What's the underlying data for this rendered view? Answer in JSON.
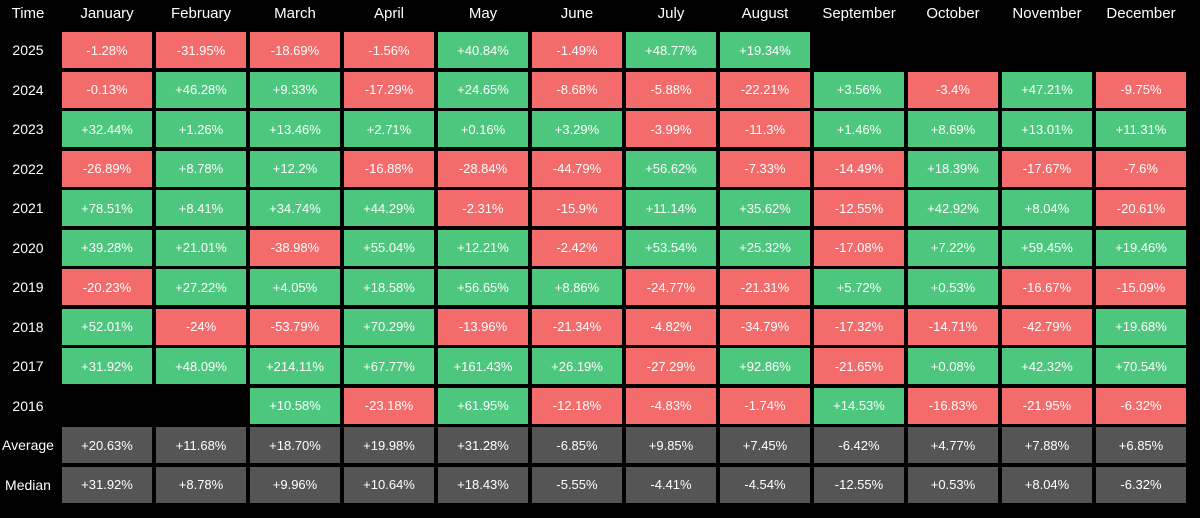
{
  "colors": {
    "positive": "#4cc77d",
    "negative": "#f36b6b",
    "summary": "#555555",
    "background": "#000000"
  },
  "header": {
    "time_label": "Time"
  },
  "chart_data": {
    "type": "heatmap",
    "title": "",
    "columns": [
      "January",
      "February",
      "March",
      "April",
      "May",
      "June",
      "July",
      "August",
      "September",
      "October",
      "November",
      "December"
    ],
    "rows": [
      {
        "label": "2025",
        "values": [
          "-1.28%",
          "-31.95%",
          "-18.69%",
          "-1.56%",
          "+40.84%",
          "-1.49%",
          "+48.77%",
          "+19.34%",
          null,
          null,
          null,
          null
        ]
      },
      {
        "label": "2024",
        "values": [
          "-0.13%",
          "+46.28%",
          "+9.33%",
          "-17.29%",
          "+24.65%",
          "-8.68%",
          "-5.88%",
          "-22.21%",
          "+3.56%",
          "-3.4%",
          "+47.21%",
          "-9.75%"
        ]
      },
      {
        "label": "2023",
        "values": [
          "+32.44%",
          "+1.26%",
          "+13.46%",
          "+2.71%",
          "+0.16%",
          "+3.29%",
          "-3.99%",
          "-11.3%",
          "+1.46%",
          "+8.69%",
          "+13.01%",
          "+11.31%"
        ]
      },
      {
        "label": "2022",
        "values": [
          "-26.89%",
          "+8.78%",
          "+12.2%",
          "-16.88%",
          "-28.84%",
          "-44.79%",
          "+56.62%",
          "-7.33%",
          "-14.49%",
          "+18.39%",
          "-17.67%",
          "-7.6%"
        ]
      },
      {
        "label": "2021",
        "values": [
          "+78.51%",
          "+8.41%",
          "+34.74%",
          "+44.29%",
          "-2.31%",
          "-15.9%",
          "+11.14%",
          "+35.62%",
          "-12.55%",
          "+42.92%",
          "+8.04%",
          "-20.61%"
        ]
      },
      {
        "label": "2020",
        "values": [
          "+39.28%",
          "+21.01%",
          "-38.98%",
          "+55.04%",
          "+12.21%",
          "-2.42%",
          "+53.54%",
          "+25.32%",
          "-17.08%",
          "+7.22%",
          "+59.45%",
          "+19.46%"
        ]
      },
      {
        "label": "2019",
        "values": [
          "-20.23%",
          "+27.22%",
          "+4.05%",
          "+18.58%",
          "+56.65%",
          "+8.86%",
          "-24.77%",
          "-21.31%",
          "+5.72%",
          "+0.53%",
          "-16.67%",
          "-15.09%"
        ]
      },
      {
        "label": "2018",
        "values": [
          "+52.01%",
          "-24%",
          "-53.79%",
          "+70.29%",
          "-13.96%",
          "-21.34%",
          "-4.82%",
          "-34.79%",
          "-17.32%",
          "-14.71%",
          "-42.79%",
          "+19.68%"
        ]
      },
      {
        "label": "2017",
        "values": [
          "+31.92%",
          "+48.09%",
          "+214.11%",
          "+67.77%",
          "+161.43%",
          "+26.19%",
          "-27.29%",
          "+92.86%",
          "-21.65%",
          "+0.08%",
          "+42.32%",
          "+70.54%"
        ]
      },
      {
        "label": "2016",
        "values": [
          null,
          null,
          "+10.58%",
          "-23.18%",
          "+61.95%",
          "-12.18%",
          "-4.83%",
          "-1.74%",
          "+14.53%",
          "-16.83%",
          "-21.95%",
          "-6.32%"
        ]
      }
    ],
    "summary_rows": [
      {
        "label": "Average",
        "values": [
          "+20.63%",
          "+11.68%",
          "+18.70%",
          "+19.98%",
          "+31.28%",
          "-6.85%",
          "+9.85%",
          "+7.45%",
          "-6.42%",
          "+4.77%",
          "+7.88%",
          "+6.85%"
        ]
      },
      {
        "label": "Median",
        "values": [
          "+31.92%",
          "+8.78%",
          "+9.96%",
          "+10.64%",
          "+18.43%",
          "-5.55%",
          "-4.41%",
          "-4.54%",
          "-12.55%",
          "+0.53%",
          "+8.04%",
          "-6.32%"
        ]
      }
    ]
  }
}
